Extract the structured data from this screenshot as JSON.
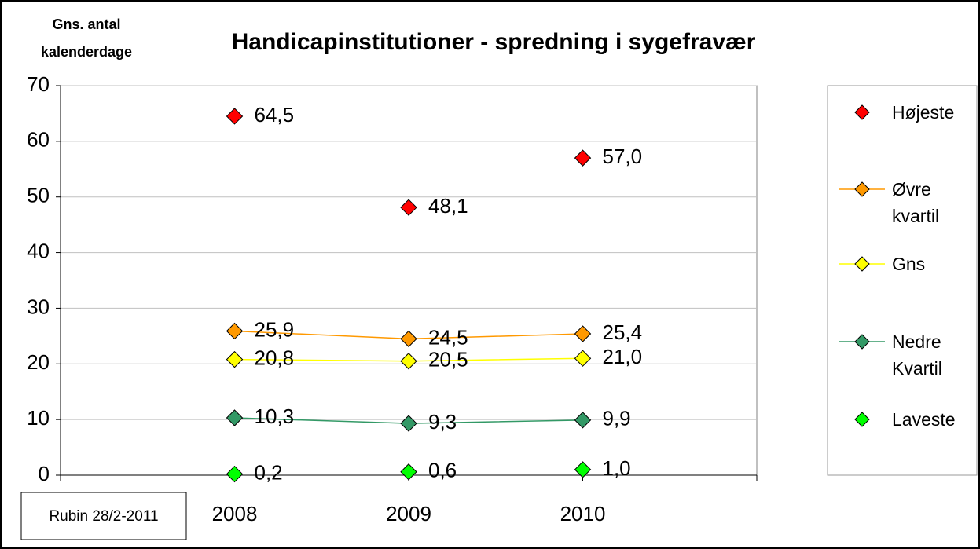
{
  "chart_data": {
    "type": "line",
    "title": "Handicapinstitutioner - spredning i sygefravær",
    "y_label": "Gns. antal kalenderdage",
    "annotation": "Rubin 28/2-2011",
    "categories": [
      "2008",
      "2009",
      "2010"
    ],
    "ylim": [
      0,
      70
    ],
    "yticks": [
      0,
      10,
      20,
      30,
      40,
      50,
      60,
      70
    ],
    "grid": true,
    "legend": "right",
    "series": [
      {
        "name": "Højeste",
        "color": "#ff0000",
        "line": false,
        "values": [
          64.5,
          48.1,
          57.0
        ],
        "value_labels": [
          "64,5",
          "48,1",
          "57,0"
        ]
      },
      {
        "name": "Øvre kvartil",
        "color": "#ff9900",
        "line": true,
        "values": [
          25.9,
          24.5,
          25.4
        ],
        "value_labels": [
          "25,9",
          "24,5",
          "25,4"
        ]
      },
      {
        "name": "Gns",
        "color": "#ffff00",
        "line": true,
        "values": [
          20.8,
          20.5,
          21.0
        ],
        "value_labels": [
          "20,8",
          "20,5",
          "21,0"
        ]
      },
      {
        "name": "Nedre Kvartil",
        "color": "#339966",
        "line": true,
        "values": [
          10.3,
          9.3,
          9.9
        ],
        "value_labels": [
          "10,3",
          "9,3",
          "9,9"
        ]
      },
      {
        "name": "Laveste",
        "color": "#00ff00",
        "line": false,
        "values": [
          0.2,
          0.6,
          1.0
        ],
        "value_labels": [
          "0,2",
          "0,6",
          "1,0"
        ]
      }
    ]
  }
}
